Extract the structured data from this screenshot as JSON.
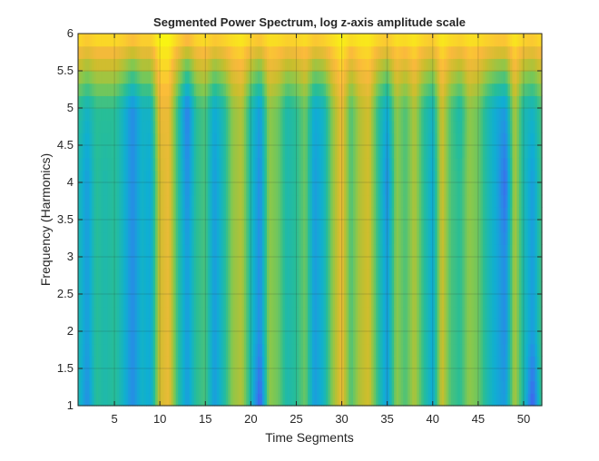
{
  "chart_data": {
    "type": "heatmap",
    "subtype": "contour",
    "title": "Segmented Power Spectrum, log z-axis amplitude scale",
    "xlabel": "Time Segments",
    "ylabel": "Frequency (Harmonics)",
    "xlim": [
      1,
      52
    ],
    "ylim": [
      1,
      6
    ],
    "xticks": [
      5,
      10,
      15,
      20,
      25,
      30,
      35,
      40,
      45,
      50
    ],
    "yticks": [
      1,
      1.5,
      2,
      2.5,
      3,
      3.5,
      4,
      4.5,
      5,
      5.5,
      6
    ],
    "grid": true,
    "colormap": "parula",
    "z_note": "normalized log amplitude 0-1",
    "harmonics": [
      1,
      2,
      3,
      4,
      5,
      6
    ],
    "z": [
      [
        0.5,
        0.3,
        0.55,
        0.5,
        0.55,
        0.45,
        0.3,
        0.45,
        0.4,
        0.8,
        0.85,
        0.55,
        0.35,
        0.55,
        0.6,
        0.35,
        0.5,
        0.7,
        0.75,
        0.5,
        0.15,
        0.7,
        0.65,
        0.5,
        0.55,
        0.65,
        0.35,
        0.45,
        0.7,
        0.85,
        0.6,
        0.75,
        0.8,
        0.55,
        0.35,
        0.7,
        0.6,
        0.75,
        0.55,
        0.4,
        0.8,
        0.6,
        0.55,
        0.7,
        0.65,
        0.5,
        0.4,
        0.35,
        0.75,
        0.5,
        0.15,
        0.6
      ],
      [
        0.5,
        0.35,
        0.55,
        0.5,
        0.55,
        0.45,
        0.3,
        0.45,
        0.4,
        0.8,
        0.85,
        0.55,
        0.35,
        0.55,
        0.6,
        0.35,
        0.5,
        0.7,
        0.75,
        0.5,
        0.3,
        0.7,
        0.65,
        0.5,
        0.55,
        0.65,
        0.35,
        0.45,
        0.7,
        0.85,
        0.6,
        0.75,
        0.8,
        0.55,
        0.35,
        0.7,
        0.6,
        0.75,
        0.55,
        0.4,
        0.8,
        0.6,
        0.55,
        0.7,
        0.65,
        0.5,
        0.4,
        0.3,
        0.75,
        0.5,
        0.35,
        0.6
      ],
      [
        0.5,
        0.35,
        0.55,
        0.5,
        0.55,
        0.45,
        0.3,
        0.45,
        0.4,
        0.8,
        0.85,
        0.55,
        0.35,
        0.55,
        0.6,
        0.35,
        0.5,
        0.7,
        0.75,
        0.5,
        0.3,
        0.7,
        0.65,
        0.5,
        0.55,
        0.65,
        0.35,
        0.45,
        0.7,
        0.85,
        0.6,
        0.75,
        0.8,
        0.55,
        0.35,
        0.7,
        0.6,
        0.75,
        0.55,
        0.4,
        0.8,
        0.6,
        0.55,
        0.7,
        0.65,
        0.5,
        0.4,
        0.3,
        0.75,
        0.5,
        0.35,
        0.6
      ],
      [
        0.5,
        0.35,
        0.55,
        0.5,
        0.55,
        0.45,
        0.3,
        0.45,
        0.4,
        0.8,
        0.85,
        0.55,
        0.3,
        0.55,
        0.6,
        0.35,
        0.5,
        0.7,
        0.75,
        0.5,
        0.3,
        0.7,
        0.65,
        0.5,
        0.55,
        0.65,
        0.35,
        0.45,
        0.7,
        0.85,
        0.6,
        0.75,
        0.8,
        0.55,
        0.3,
        0.7,
        0.6,
        0.75,
        0.55,
        0.4,
        0.8,
        0.6,
        0.55,
        0.7,
        0.65,
        0.5,
        0.4,
        0.2,
        0.75,
        0.5,
        0.35,
        0.6
      ],
      [
        0.55,
        0.45,
        0.55,
        0.55,
        0.55,
        0.45,
        0.3,
        0.45,
        0.45,
        0.85,
        0.85,
        0.55,
        0.25,
        0.55,
        0.6,
        0.4,
        0.5,
        0.7,
        0.75,
        0.5,
        0.35,
        0.7,
        0.65,
        0.5,
        0.55,
        0.65,
        0.4,
        0.45,
        0.7,
        0.85,
        0.6,
        0.75,
        0.8,
        0.55,
        0.4,
        0.7,
        0.6,
        0.75,
        0.55,
        0.45,
        0.8,
        0.6,
        0.5,
        0.7,
        0.65,
        0.5,
        0.4,
        0.35,
        0.75,
        0.5,
        0.45,
        0.6
      ],
      [
        0.97,
        0.95,
        0.97,
        0.97,
        0.97,
        0.96,
        0.94,
        0.96,
        0.96,
        1.0,
        1.0,
        0.96,
        0.93,
        0.96,
        0.97,
        0.95,
        0.96,
        0.97,
        0.98,
        0.96,
        0.95,
        0.97,
        0.97,
        0.96,
        0.96,
        0.97,
        0.95,
        0.96,
        0.97,
        0.99,
        0.97,
        0.98,
        0.98,
        0.96,
        0.95,
        0.97,
        0.97,
        0.98,
        0.96,
        0.95,
        0.98,
        0.97,
        0.96,
        0.97,
        0.97,
        0.96,
        0.95,
        0.95,
        0.98,
        0.96,
        0.95,
        0.97
      ]
    ]
  }
}
